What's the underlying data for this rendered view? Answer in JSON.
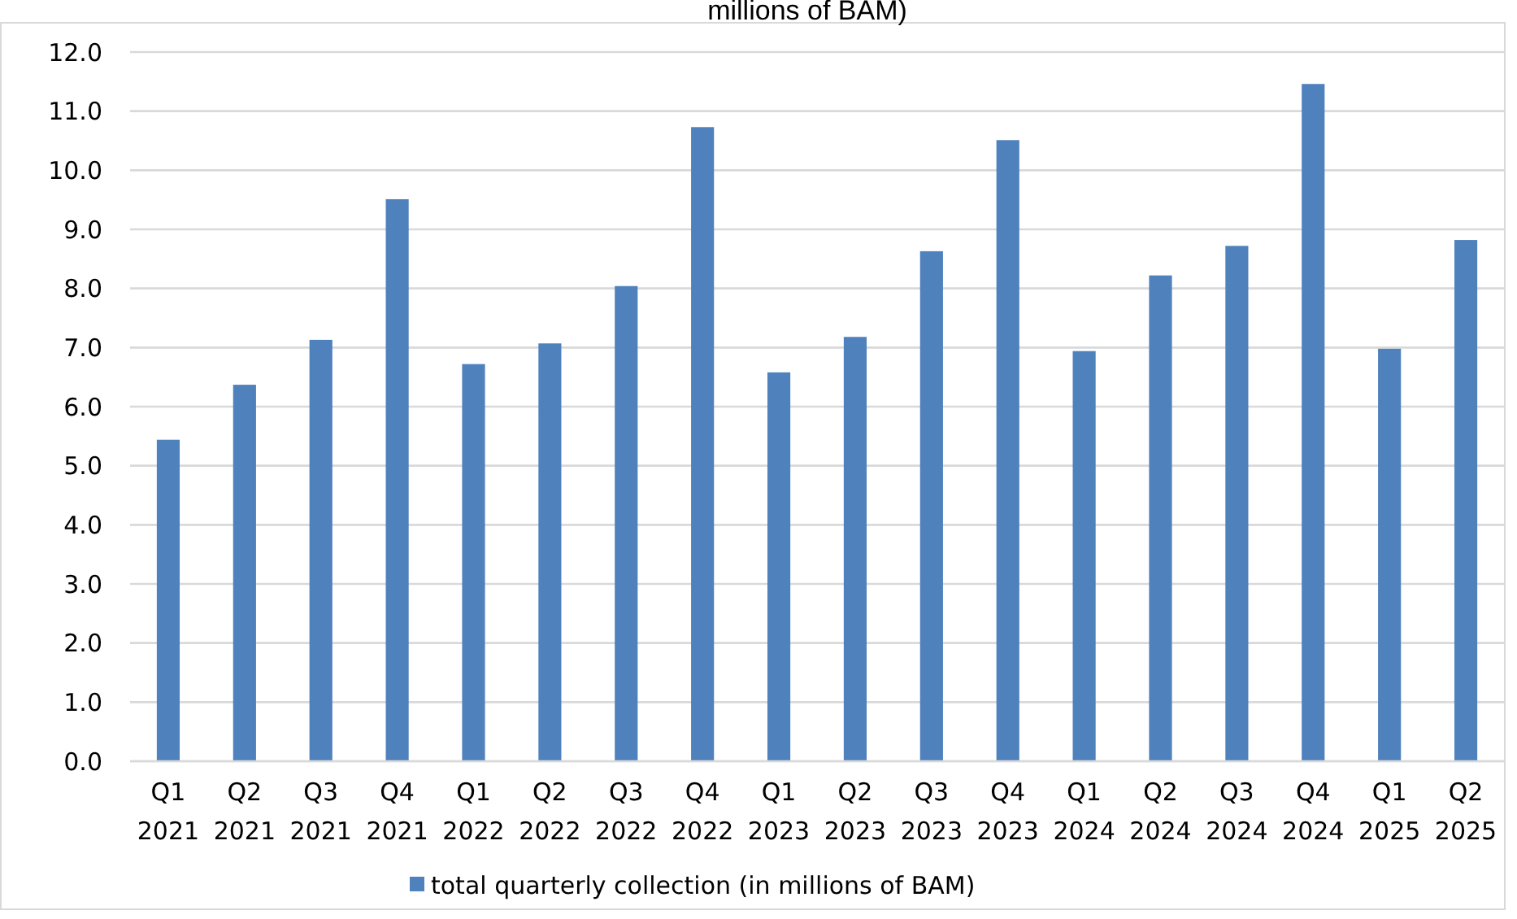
{
  "chart_data": {
    "type": "bar",
    "title": "millions of BAM)",
    "categories": [
      "Q1 2021",
      "Q2 2021",
      "Q3 2021",
      "Q4 2021",
      "Q1 2022",
      "Q2 2022",
      "Q3 2022",
      "Q4 2022",
      "Q1 2023",
      "Q2 2023",
      "Q3 2023",
      "Q4 2023",
      "Q1 2024",
      "Q2 2024",
      "Q3 2024",
      "Q4 2024",
      "Q1 2025",
      "Q2 2025"
    ],
    "series": [
      {
        "name": "total quarterly collection (in millions of BAM)",
        "color": "#4f81bd",
        "values": [
          5.44,
          6.37,
          7.13,
          9.51,
          6.72,
          7.07,
          8.04,
          10.73,
          6.58,
          7.18,
          8.63,
          10.51,
          6.94,
          8.22,
          8.72,
          11.46,
          6.98,
          8.82
        ]
      }
    ],
    "ylim": [
      0,
      12
    ],
    "yticks": [
      {
        "value": 0,
        "label": "0.0"
      },
      {
        "value": 1,
        "label": "1.0"
      },
      {
        "value": 2,
        "label": "2.0"
      },
      {
        "value": 3,
        "label": "3.0"
      },
      {
        "value": 4,
        "label": "4.0"
      },
      {
        "value": 5,
        "label": "5.0"
      },
      {
        "value": 6,
        "label": "6.0"
      },
      {
        "value": 7,
        "label": "7.0"
      },
      {
        "value": 8,
        "label": "8.0"
      },
      {
        "value": 9,
        "label": "9.0"
      },
      {
        "value": 10,
        "label": "10.0"
      },
      {
        "value": 11,
        "label": "11.0"
      },
      {
        "value": 12,
        "label": "12.0"
      }
    ],
    "grid": "y",
    "legend": "bottom"
  }
}
